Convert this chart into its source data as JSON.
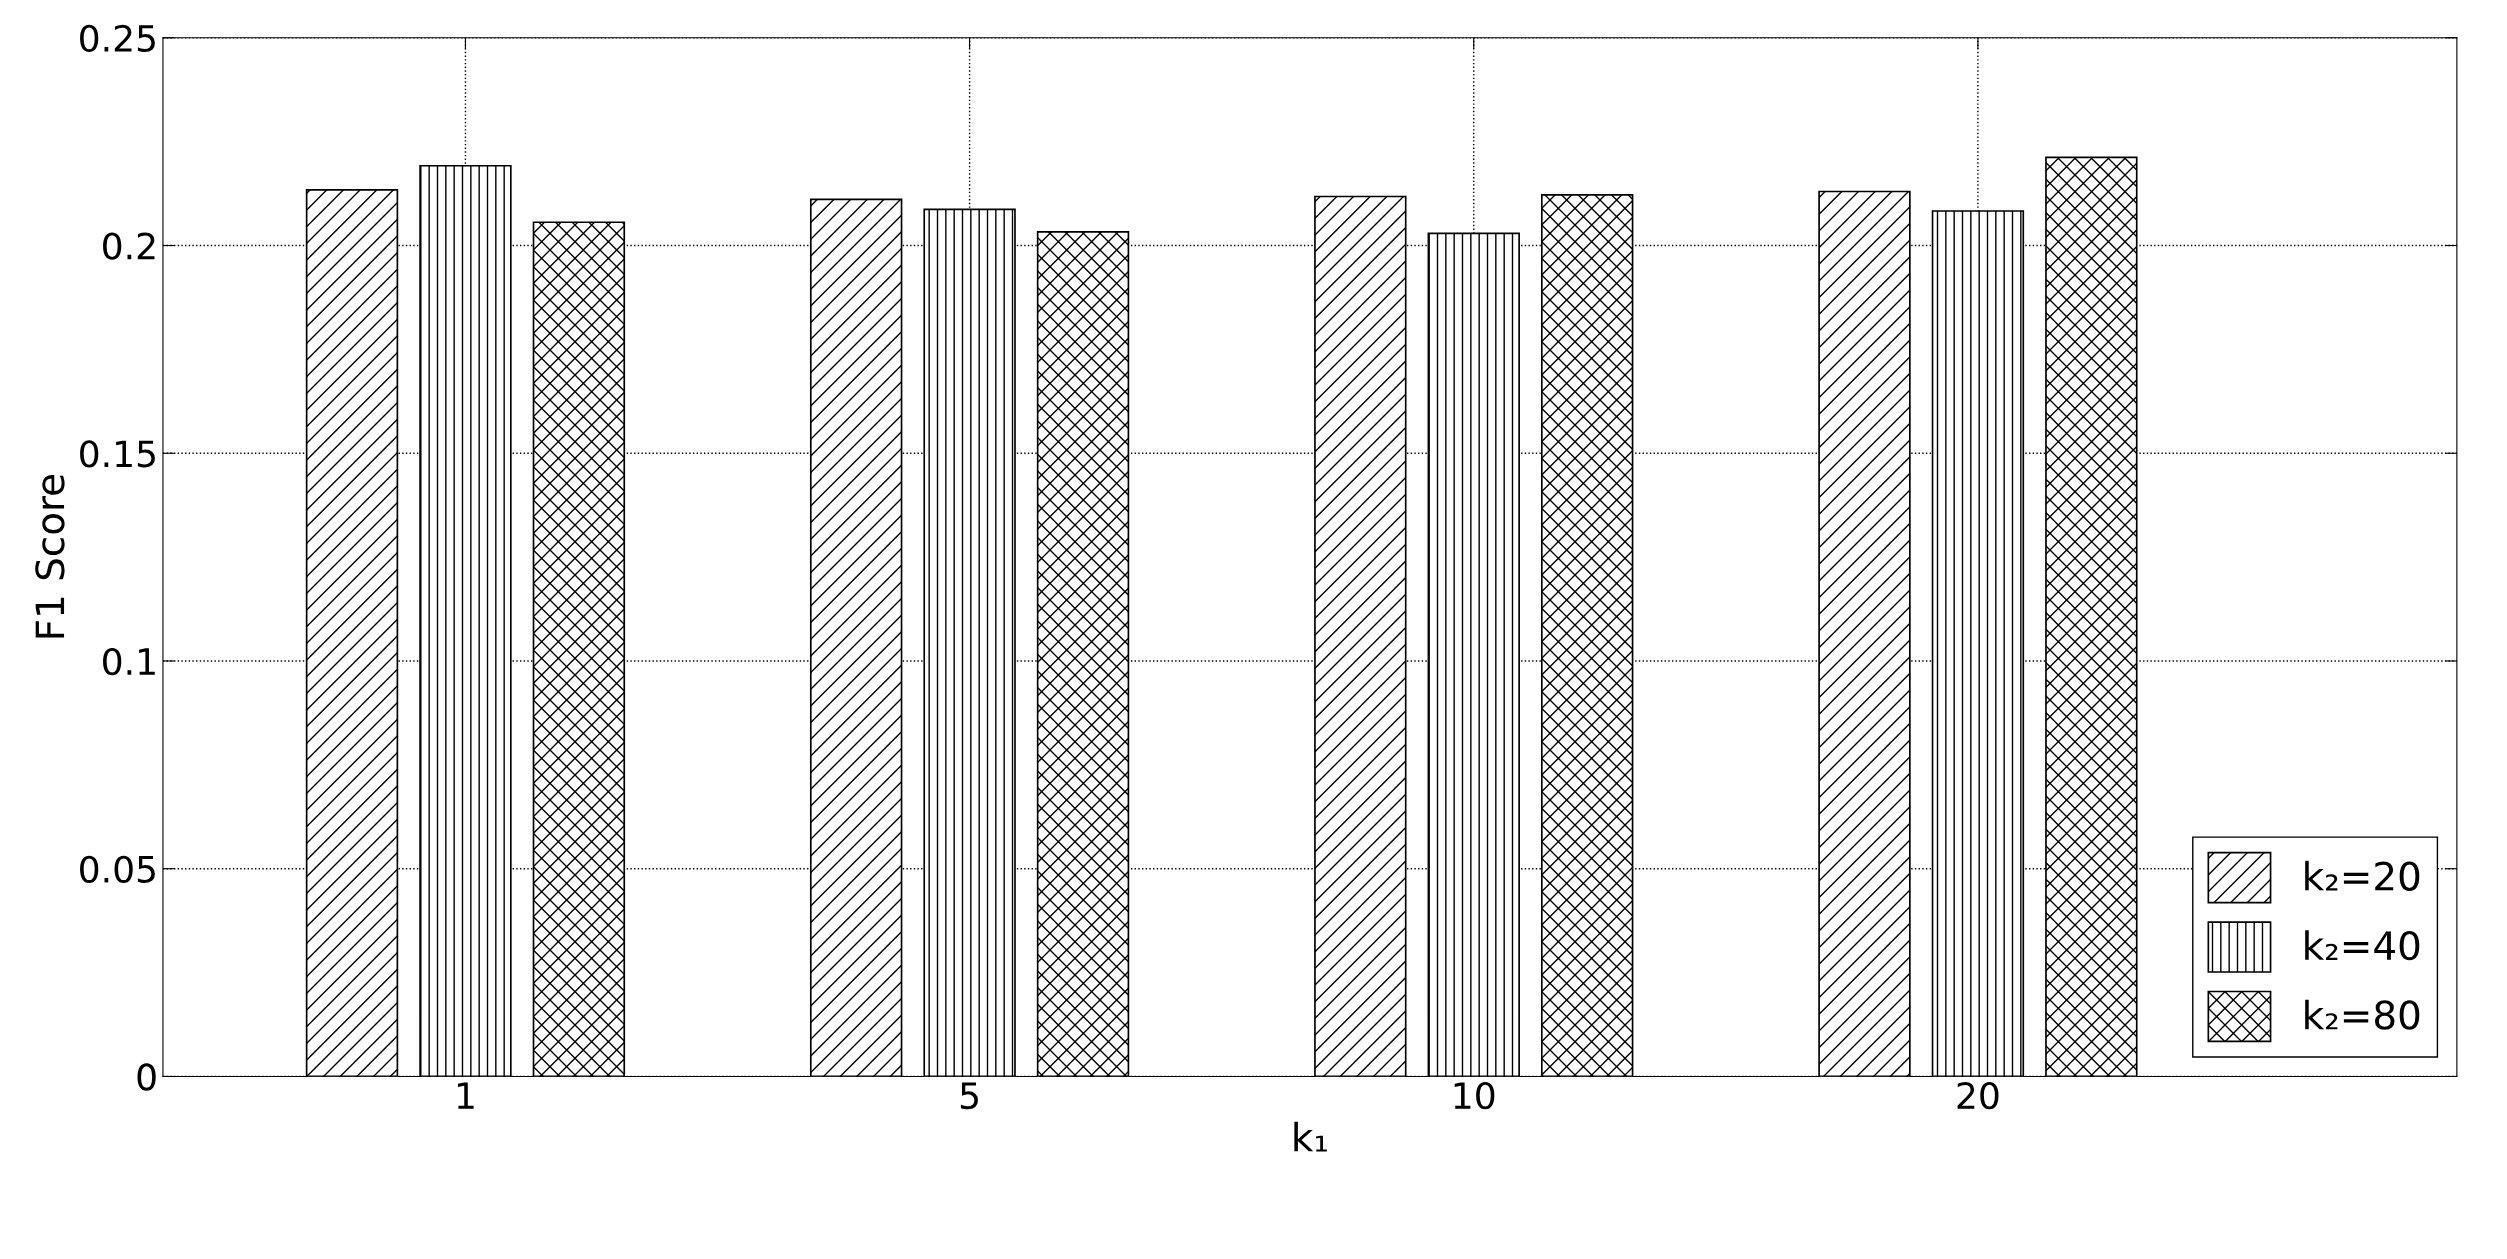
{
  "chart_data": {
    "type": "bar",
    "xlabel": "k₁",
    "ylabel": "F1 Score",
    "categories": [
      "1",
      "5",
      "10",
      "20"
    ],
    "series": [
      {
        "name": "k₂=20",
        "color": "#000000",
        "values": [
          0.2134,
          0.2111,
          0.2118,
          0.213
        ]
      },
      {
        "name": "k₂=40",
        "color": "#000000",
        "values": [
          0.2192,
          0.2087,
          0.2029,
          0.2083
        ]
      },
      {
        "name": "k₂=80",
        "color": "#000000",
        "values": [
          0.2056,
          0.2033,
          0.2122,
          0.2212
        ]
      }
    ],
    "ylim": [
      0,
      0.25
    ],
    "yticks": [
      0,
      0.05,
      0.1,
      0.15,
      0.2,
      0.25
    ],
    "grid": true,
    "legend": "bottom right"
  }
}
